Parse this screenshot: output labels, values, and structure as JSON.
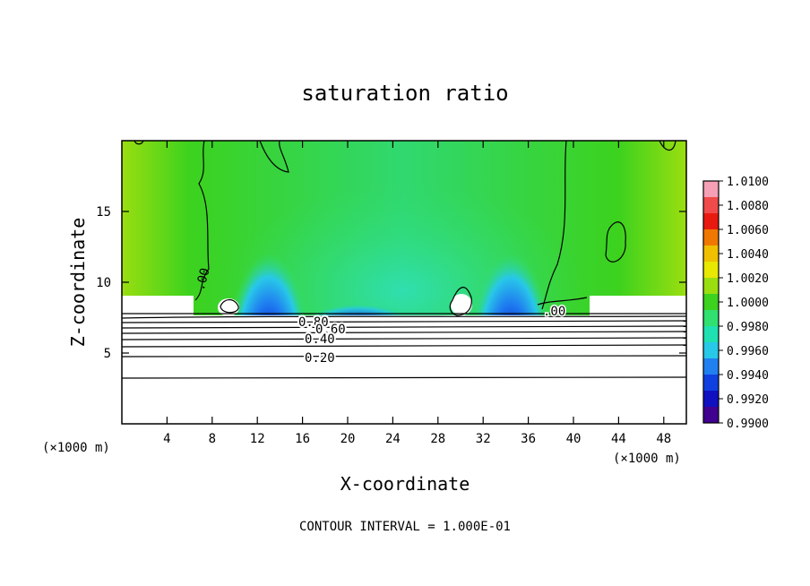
{
  "chart_data": {
    "type": "heatmap",
    "title": "saturation ratio",
    "xlabel": "X-coordinate",
    "ylabel": "Z-coordinate",
    "x_unit": "(×1000 m)",
    "y_unit": "(×1000 m)",
    "xlim": [
      0,
      50
    ],
    "ylim": [
      0,
      20
    ],
    "xticks": [
      4,
      8,
      12,
      16,
      20,
      24,
      28,
      32,
      36,
      40,
      44,
      48
    ],
    "yticks": [
      5,
      10,
      15
    ],
    "colorbar": {
      "ticks": [
        "1.0100",
        "1.0080",
        "1.0060",
        "1.0040",
        "1.0020",
        "1.0000",
        "0.9980",
        "0.9960",
        "0.9940",
        "0.9920",
        "0.9900"
      ],
      "colors": [
        "#f5a0b4",
        "#f04a4a",
        "#e81a10",
        "#f07800",
        "#f0c000",
        "#e8e800",
        "#9ade10",
        "#3cd21e",
        "#30e070",
        "#1ee0b0",
        "#28c8e8",
        "#2080f0",
        "#1040e0",
        "#1010c0",
        "#400090"
      ]
    },
    "contour_labels": [
      "0.80",
      "0.60",
      "0.40",
      "0.20",
      ".00",
      ".00"
    ],
    "footer": "CONTOUR INTERVAL = 1.000E-01"
  }
}
